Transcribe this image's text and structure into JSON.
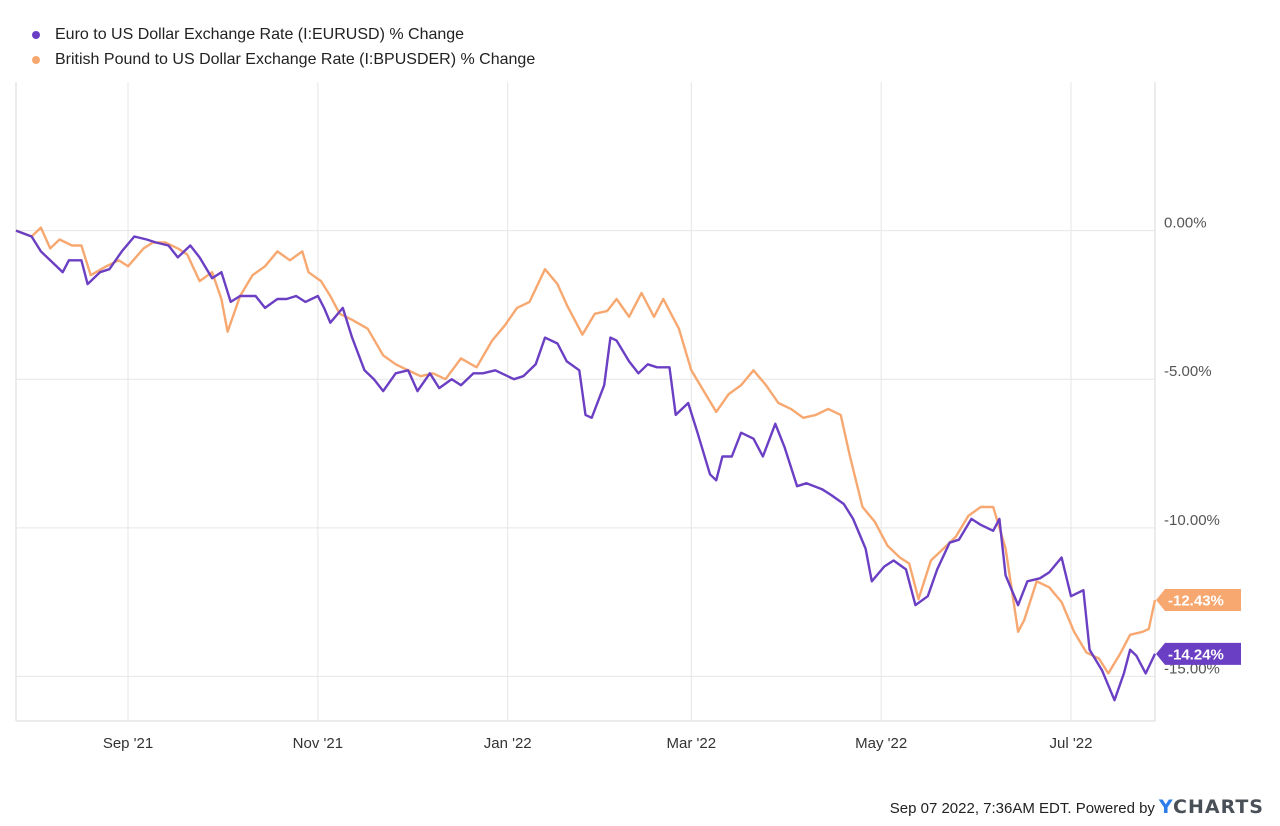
{
  "chart_data": {
    "type": "line",
    "title": "",
    "xlabel": "",
    "ylabel": "",
    "x_ticks": [
      "Sep '21",
      "Nov '21",
      "Jan '22",
      "Mar '22",
      "May '22",
      "Jul '22"
    ],
    "x_tick_dates": [
      "2021-09-01",
      "2021-11-01",
      "2022-01-01",
      "2022-03-01",
      "2022-05-01",
      "2022-07-01"
    ],
    "x_range": [
      "2021-07-27",
      "2022-07-28"
    ],
    "y_ticks": [
      0,
      -5,
      -10,
      -15
    ],
    "y_tick_labels": [
      "0.00%",
      "-5.00%",
      "-10.00%",
      "-15.00%"
    ],
    "ylim": [
      -16.5,
      5
    ],
    "grid": true,
    "legend_position": "top-left",
    "series": [
      {
        "name": "Euro to US Dollar Exchange Rate (I:EURUSD) % Change",
        "color": "#6b3fc3",
        "last_label": "-14.24%",
        "points": [
          [
            "2021-07-27",
            0.0
          ],
          [
            "2021-08-01",
            -0.2
          ],
          [
            "2021-08-04",
            -0.7
          ],
          [
            "2021-08-09",
            -1.2
          ],
          [
            "2021-08-11",
            -1.4
          ],
          [
            "2021-08-13",
            -1.0
          ],
          [
            "2021-08-17",
            -1.0
          ],
          [
            "2021-08-19",
            -1.8
          ],
          [
            "2021-08-23",
            -1.4
          ],
          [
            "2021-08-26",
            -1.3
          ],
          [
            "2021-08-30",
            -0.7
          ],
          [
            "2021-09-03",
            -0.2
          ],
          [
            "2021-09-07",
            -0.3
          ],
          [
            "2021-09-10",
            -0.4
          ],
          [
            "2021-09-14",
            -0.5
          ],
          [
            "2021-09-17",
            -0.9
          ],
          [
            "2021-09-21",
            -0.5
          ],
          [
            "2021-09-24",
            -0.9
          ],
          [
            "2021-09-28",
            -1.6
          ],
          [
            "2021-10-01",
            -1.4
          ],
          [
            "2021-10-04",
            -2.4
          ],
          [
            "2021-10-07",
            -2.2
          ],
          [
            "2021-10-12",
            -2.2
          ],
          [
            "2021-10-15",
            -2.6
          ],
          [
            "2021-10-19",
            -2.3
          ],
          [
            "2021-10-22",
            -2.3
          ],
          [
            "2021-10-25",
            -2.2
          ],
          [
            "2021-10-28",
            -2.4
          ],
          [
            "2021-11-01",
            -2.2
          ],
          [
            "2021-11-03",
            -2.6
          ],
          [
            "2021-11-05",
            -3.1
          ],
          [
            "2021-11-09",
            -2.6
          ],
          [
            "2021-11-12",
            -3.6
          ],
          [
            "2021-11-16",
            -4.7
          ],
          [
            "2021-11-19",
            -5.0
          ],
          [
            "2021-11-22",
            -5.4
          ],
          [
            "2021-11-26",
            -4.8
          ],
          [
            "2021-11-30",
            -4.7
          ],
          [
            "2021-12-03",
            -5.4
          ],
          [
            "2021-12-07",
            -4.8
          ],
          [
            "2021-12-10",
            -5.3
          ],
          [
            "2021-12-14",
            -5.0
          ],
          [
            "2021-12-17",
            -5.2
          ],
          [
            "2021-12-21",
            -4.8
          ],
          [
            "2021-12-24",
            -4.8
          ],
          [
            "2021-12-28",
            -4.7
          ],
          [
            "2022-01-03",
            -5.0
          ],
          [
            "2022-01-06",
            -4.9
          ],
          [
            "2022-01-10",
            -4.5
          ],
          [
            "2022-01-13",
            -3.6
          ],
          [
            "2022-01-17",
            -3.8
          ],
          [
            "2022-01-20",
            -4.4
          ],
          [
            "2022-01-24",
            -4.7
          ],
          [
            "2022-01-26",
            -6.2
          ],
          [
            "2022-01-28",
            -6.3
          ],
          [
            "2022-02-01",
            -5.2
          ],
          [
            "2022-02-03",
            -3.6
          ],
          [
            "2022-02-05",
            -3.7
          ],
          [
            "2022-02-09",
            -4.4
          ],
          [
            "2022-02-12",
            -4.8
          ],
          [
            "2022-02-15",
            -4.5
          ],
          [
            "2022-02-18",
            -4.6
          ],
          [
            "2022-02-22",
            -4.6
          ],
          [
            "2022-02-24",
            -6.2
          ],
          [
            "2022-02-28",
            -5.8
          ],
          [
            "2022-03-03",
            -6.8
          ],
          [
            "2022-03-07",
            -8.2
          ],
          [
            "2022-03-09",
            -8.4
          ],
          [
            "2022-03-11",
            -7.6
          ],
          [
            "2022-03-14",
            -7.6
          ],
          [
            "2022-03-17",
            -6.8
          ],
          [
            "2022-03-21",
            -7.0
          ],
          [
            "2022-03-24",
            -7.6
          ],
          [
            "2022-03-28",
            -6.5
          ],
          [
            "2022-03-31",
            -7.3
          ],
          [
            "2022-04-04",
            -8.6
          ],
          [
            "2022-04-07",
            -8.5
          ],
          [
            "2022-04-12",
            -8.7
          ],
          [
            "2022-04-15",
            -8.9
          ],
          [
            "2022-04-19",
            -9.2
          ],
          [
            "2022-04-22",
            -9.7
          ],
          [
            "2022-04-26",
            -10.7
          ],
          [
            "2022-04-28",
            -11.8
          ],
          [
            "2022-05-02",
            -11.3
          ],
          [
            "2022-05-05",
            -11.1
          ],
          [
            "2022-05-09",
            -11.4
          ],
          [
            "2022-05-12",
            -12.6
          ],
          [
            "2022-05-16",
            -12.3
          ],
          [
            "2022-05-19",
            -11.4
          ],
          [
            "2022-05-23",
            -10.5
          ],
          [
            "2022-05-26",
            -10.4
          ],
          [
            "2022-05-30",
            -9.7
          ],
          [
            "2022-06-02",
            -9.9
          ],
          [
            "2022-06-06",
            -10.1
          ],
          [
            "2022-06-08",
            -9.7
          ],
          [
            "2022-06-10",
            -11.6
          ],
          [
            "2022-06-14",
            -12.6
          ],
          [
            "2022-06-17",
            -11.8
          ],
          [
            "2022-06-21",
            -11.7
          ],
          [
            "2022-06-24",
            -11.5
          ],
          [
            "2022-06-28",
            -11.0
          ],
          [
            "2022-07-01",
            -12.3
          ],
          [
            "2022-07-05",
            -12.1
          ],
          [
            "2022-07-07",
            -14.1
          ],
          [
            "2022-07-11",
            -14.8
          ],
          [
            "2022-07-13",
            -15.3
          ],
          [
            "2022-07-15",
            -15.8
          ],
          [
            "2022-07-18",
            -14.9
          ],
          [
            "2022-07-20",
            -14.1
          ],
          [
            "2022-07-22",
            -14.3
          ],
          [
            "2022-07-25",
            -14.9
          ],
          [
            "2022-07-28",
            -14.24
          ]
        ]
      },
      {
        "name": "British Pound to US Dollar Exchange Rate (I:BPUSDER) % Change",
        "color": "#f7a870",
        "last_label": "-12.43%",
        "points": [
          [
            "2021-07-27",
            0.0
          ],
          [
            "2021-08-01",
            -0.2
          ],
          [
            "2021-08-04",
            0.1
          ],
          [
            "2021-08-07",
            -0.6
          ],
          [
            "2021-08-10",
            -0.3
          ],
          [
            "2021-08-14",
            -0.5
          ],
          [
            "2021-08-17",
            -0.5
          ],
          [
            "2021-08-20",
            -1.5
          ],
          [
            "2021-08-25",
            -1.2
          ],
          [
            "2021-08-29",
            -1.0
          ],
          [
            "2021-09-01",
            -1.2
          ],
          [
            "2021-09-06",
            -0.6
          ],
          [
            "2021-09-09",
            -0.4
          ],
          [
            "2021-09-13",
            -0.4
          ],
          [
            "2021-09-17",
            -0.6
          ],
          [
            "2021-09-20",
            -0.8
          ],
          [
            "2021-09-24",
            -1.7
          ],
          [
            "2021-09-28",
            -1.4
          ],
          [
            "2021-10-01",
            -2.3
          ],
          [
            "2021-10-03",
            -3.4
          ],
          [
            "2021-10-07",
            -2.2
          ],
          [
            "2021-10-11",
            -1.5
          ],
          [
            "2021-10-15",
            -1.2
          ],
          [
            "2021-10-19",
            -0.7
          ],
          [
            "2021-10-23",
            -1.0
          ],
          [
            "2021-10-27",
            -0.7
          ],
          [
            "2021-10-29",
            -1.4
          ],
          [
            "2021-11-02",
            -1.7
          ],
          [
            "2021-11-05",
            -2.2
          ],
          [
            "2021-11-08",
            -2.8
          ],
          [
            "2021-11-12",
            -3.0
          ],
          [
            "2021-11-17",
            -3.3
          ],
          [
            "2021-11-22",
            -4.2
          ],
          [
            "2021-11-26",
            -4.5
          ],
          [
            "2021-11-30",
            -4.7
          ],
          [
            "2021-12-04",
            -4.9
          ],
          [
            "2021-12-08",
            -4.8
          ],
          [
            "2021-12-12",
            -5.0
          ],
          [
            "2021-12-17",
            -4.3
          ],
          [
            "2021-12-22",
            -4.6
          ],
          [
            "2021-12-27",
            -3.7
          ],
          [
            "2021-12-31",
            -3.2
          ],
          [
            "2022-01-04",
            -2.6
          ],
          [
            "2022-01-08",
            -2.4
          ],
          [
            "2022-01-13",
            -1.3
          ],
          [
            "2022-01-17",
            -1.8
          ],
          [
            "2022-01-20",
            -2.5
          ],
          [
            "2022-01-25",
            -3.5
          ],
          [
            "2022-01-29",
            -2.8
          ],
          [
            "2022-02-02",
            -2.7
          ],
          [
            "2022-02-05",
            -2.3
          ],
          [
            "2022-02-09",
            -2.9
          ],
          [
            "2022-02-13",
            -2.1
          ],
          [
            "2022-02-17",
            -2.9
          ],
          [
            "2022-02-20",
            -2.3
          ],
          [
            "2022-02-25",
            -3.3
          ],
          [
            "2022-03-01",
            -4.7
          ],
          [
            "2022-03-05",
            -5.4
          ],
          [
            "2022-03-09",
            -6.1
          ],
          [
            "2022-03-13",
            -5.5
          ],
          [
            "2022-03-17",
            -5.2
          ],
          [
            "2022-03-21",
            -4.7
          ],
          [
            "2022-03-25",
            -5.2
          ],
          [
            "2022-03-29",
            -5.8
          ],
          [
            "2022-04-02",
            -6.0
          ],
          [
            "2022-04-06",
            -6.3
          ],
          [
            "2022-04-10",
            -6.2
          ],
          [
            "2022-04-14",
            -6.0
          ],
          [
            "2022-04-18",
            -6.2
          ],
          [
            "2022-04-21",
            -7.6
          ],
          [
            "2022-04-25",
            -9.3
          ],
          [
            "2022-04-29",
            -9.8
          ],
          [
            "2022-05-03",
            -10.6
          ],
          [
            "2022-05-07",
            -11.0
          ],
          [
            "2022-05-10",
            -11.2
          ],
          [
            "2022-05-13",
            -12.4
          ],
          [
            "2022-05-17",
            -11.1
          ],
          [
            "2022-05-21",
            -10.7
          ],
          [
            "2022-05-25",
            -10.3
          ],
          [
            "2022-05-29",
            -9.6
          ],
          [
            "2022-06-02",
            -9.3
          ],
          [
            "2022-06-06",
            -9.3
          ],
          [
            "2022-06-10",
            -10.7
          ],
          [
            "2022-06-14",
            -13.5
          ],
          [
            "2022-06-16",
            -13.1
          ],
          [
            "2022-06-20",
            -11.8
          ],
          [
            "2022-06-24",
            -12.0
          ],
          [
            "2022-06-28",
            -12.5
          ],
          [
            "2022-07-02",
            -13.5
          ],
          [
            "2022-07-06",
            -14.2
          ],
          [
            "2022-07-10",
            -14.4
          ],
          [
            "2022-07-13",
            -14.9
          ],
          [
            "2022-07-17",
            -14.2
          ],
          [
            "2022-07-20",
            -13.6
          ],
          [
            "2022-07-24",
            -13.5
          ],
          [
            "2022-07-26",
            -13.4
          ],
          [
            "2022-07-28",
            -12.43
          ]
        ]
      }
    ]
  },
  "footer": {
    "timestamp": "Sep 07 2022, 7:36AM EDT.",
    "powered_by": "Powered by",
    "brand_y": "Y",
    "brand_rest": "CHARTS"
  }
}
